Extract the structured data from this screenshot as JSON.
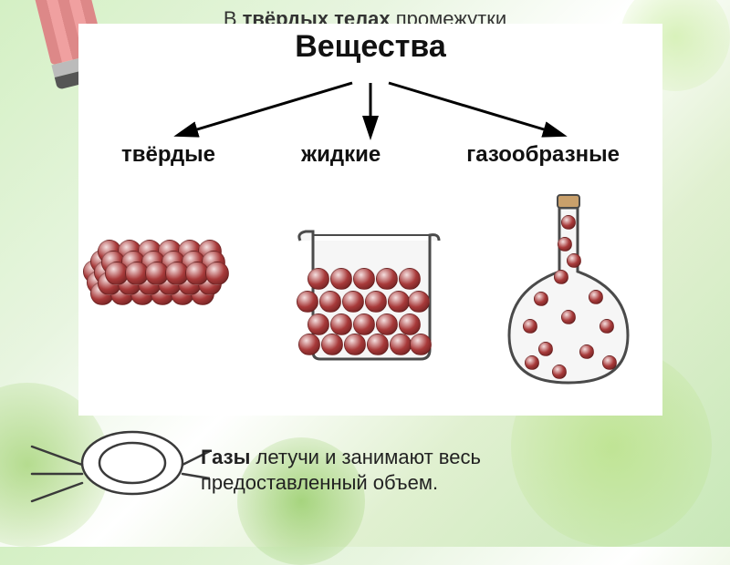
{
  "header": {
    "prefix": "В ",
    "bold": "твёрдых телах",
    "suffix": " промежутки"
  },
  "diagram": {
    "title": "Вещества",
    "states": [
      {
        "key": "solid",
        "label": "твёрдые"
      },
      {
        "key": "liquid",
        "label": "жидкие"
      },
      {
        "key": "gas",
        "label": "газообразные"
      }
    ],
    "arrow_color": "#000000",
    "bg_color": "#ffffff"
  },
  "particles": {
    "color": "#a83a3a",
    "highlight": "#f5e0e0",
    "shadow": "#5a1818",
    "solid": {
      "radius": 13,
      "cols": 6,
      "rows": 4,
      "spacing": 22
    },
    "liquid": {
      "radius": 12
    },
    "gas": {
      "radius": 8
    }
  },
  "containers": {
    "beaker": {
      "stroke": "#4a4a4a",
      "fill": "#f6f6f6"
    },
    "flask": {
      "stroke": "#4a4a4a",
      "fill": "#f6f6f6",
      "cork_color": "#c9a06b"
    }
  },
  "footer": {
    "bold": "Газы",
    "rest": " летучи и занимают весь предоставленный объем."
  },
  "cat": {
    "stroke": "#3a3a3a"
  }
}
